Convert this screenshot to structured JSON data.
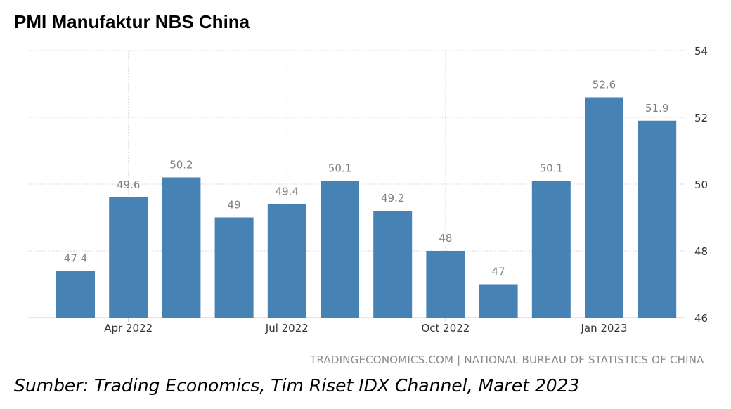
{
  "chart_data": {
    "type": "bar",
    "title": "PMI Manufaktur NBS China",
    "categories": [
      "Mar 2022",
      "Apr 2022",
      "May 2022",
      "Jun 2022",
      "Jul 2022",
      "Aug 2022",
      "Sep 2022",
      "Oct 2022",
      "Nov 2022",
      "Dec 2022",
      "Jan 2023",
      "Feb 2023"
    ],
    "values": [
      47.4,
      49.6,
      50.2,
      49,
      49.4,
      50.1,
      49.2,
      48,
      47,
      50.1,
      52.6,
      51.9
    ],
    "data_labels": [
      "47.4",
      "49.6",
      "50.2",
      "49",
      "49.4",
      "50.1",
      "49.2",
      "48",
      "47",
      "50.1",
      "52.6",
      "51.9"
    ],
    "x_tick_labels": [
      "Apr 2022",
      "Jul 2022",
      "Oct 2022",
      "Jan 2023"
    ],
    "y_ticks": [
      "46",
      "48",
      "50",
      "52",
      "54"
    ],
    "ylim": [
      46,
      54
    ],
    "y_axis_side": "right",
    "grid": true,
    "bar_color": "#4682b4"
  },
  "source_note": "TRADINGECONOMICS.COM | NATIONAL BUREAU OF STATISTICS OF CHINA",
  "caption": "Sumber: Trading Economics, Tim Riset IDX Channel, Maret 2023"
}
